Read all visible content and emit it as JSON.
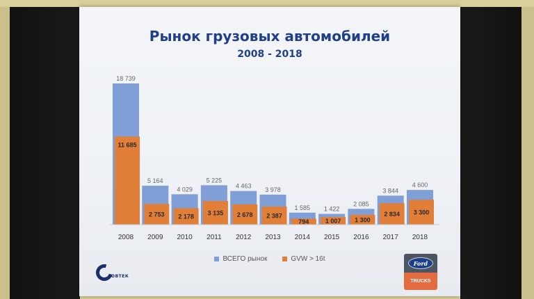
{
  "slide": {
    "title": "Рынок грузовых автомобилей",
    "subtitle": "2008 - 2018"
  },
  "colors": {
    "total": "#7f9fd6",
    "gvw": "#e17f38",
    "title": "#1f3f86"
  },
  "logos": {
    "left_brand": "ОВТЕК",
    "right_brand": "Ford",
    "right_caption": "TRUCKS"
  },
  "chart_data": {
    "type": "bar",
    "categories": [
      "2008",
      "2009",
      "2010",
      "2011",
      "2012",
      "2013",
      "2014",
      "2015",
      "2016",
      "2017",
      "2018"
    ],
    "series": [
      {
        "name": "ВСЕГО рынок",
        "values": [
          18739,
          5164,
          4029,
          5225,
          4463,
          3978,
          1585,
          1422,
          2085,
          3844,
          4600
        ],
        "labels": [
          "18 739",
          "5 164",
          "4 029",
          "5 225",
          "4 463",
          "3 978",
          "1 585",
          "1 422",
          "2 085",
          "3 844",
          "4 600"
        ]
      },
      {
        "name": "GVW > 16t",
        "values": [
          11685,
          2753,
          2178,
          3135,
          2678,
          2387,
          794,
          1007,
          1300,
          2834,
          3300
        ],
        "labels": [
          "11 685",
          "2 753",
          "2 178",
          "3 135",
          "2 678",
          "2 387",
          "794",
          "1 007",
          "1 300",
          "2 834",
          "3 300"
        ]
      }
    ],
    "legend_position": "bottom",
    "ylim": [
      0,
      18739
    ],
    "grid": false
  }
}
